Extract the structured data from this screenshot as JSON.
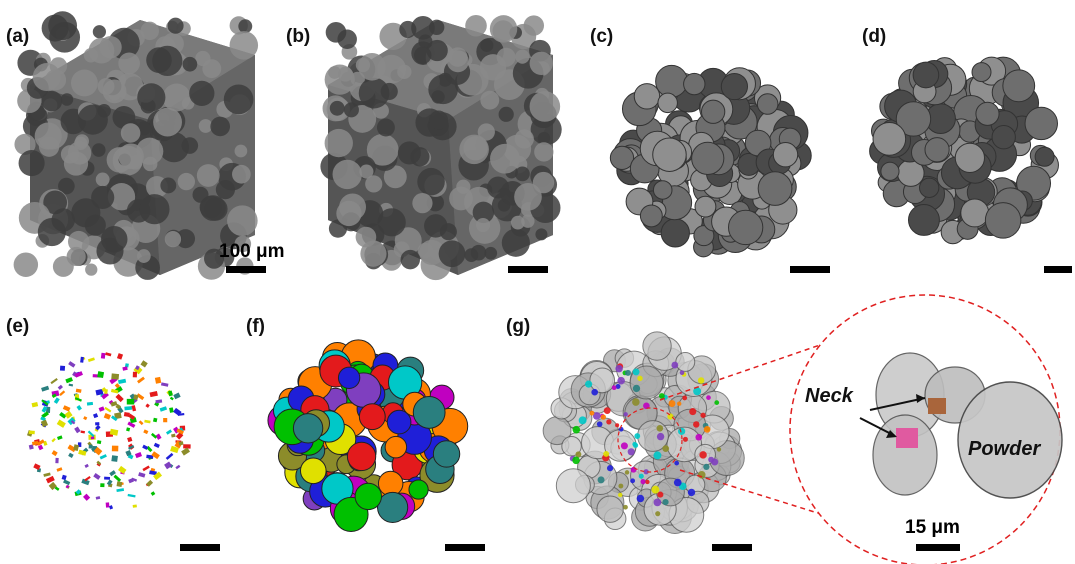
{
  "panels": {
    "a": {
      "label": "(a)",
      "scale": "100 μm"
    },
    "b": {
      "label": "(b)"
    },
    "c": {
      "label": "(c)"
    },
    "d": {
      "label": "(d)"
    },
    "e": {
      "label": "(e)"
    },
    "f": {
      "label": "(f)"
    },
    "g": {
      "label": "(g)"
    }
  },
  "inset": {
    "neck_label": "Neck",
    "powder_label": "Powder",
    "scale": "15 μm"
  },
  "colors": {
    "particle_gray": "#6e6e6e",
    "particle_dark": "#4a4a4a",
    "particle_light": "#8f8f8f",
    "inset_circle": "#e02020",
    "palette": [
      "#e31a1c",
      "#1f1fd8",
      "#00c000",
      "#e0e000",
      "#c000c0",
      "#00c8c8",
      "#8c8c2a",
      "#2a7f7f",
      "#ff8000",
      "#7f3fbf"
    ]
  }
}
